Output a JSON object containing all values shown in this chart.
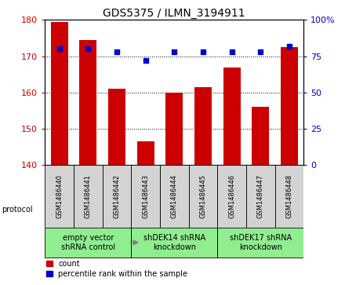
{
  "title": "GDS5375 / ILMN_3194911",
  "samples": [
    "GSM1486440",
    "GSM1486441",
    "GSM1486442",
    "GSM1486443",
    "GSM1486444",
    "GSM1486445",
    "GSM1486446",
    "GSM1486447",
    "GSM1486448"
  ],
  "counts": [
    179.5,
    174.5,
    161.0,
    146.5,
    160.0,
    161.5,
    167.0,
    156.0,
    172.5
  ],
  "percentiles": [
    80,
    80,
    78,
    72,
    78,
    78,
    78,
    78,
    82
  ],
  "ylim_left": [
    140,
    180
  ],
  "ylim_right": [
    0,
    100
  ],
  "yticks_left": [
    140,
    150,
    160,
    170,
    180
  ],
  "yticks_right": [
    0,
    25,
    50,
    75,
    100
  ],
  "ytick_labels_right": [
    "0",
    "25",
    "50",
    "75",
    "100%"
  ],
  "bar_color": "#cc0000",
  "dot_color": "#0000cc",
  "groups": [
    {
      "label": "empty vector\nshRNA control",
      "start": 0,
      "end": 3,
      "color": "#90ee90"
    },
    {
      "label": "shDEK14 shRNA\nknockdown",
      "start": 3,
      "end": 6,
      "color": "#90ee90"
    },
    {
      "label": "shDEK17 shRNA\nknockdown",
      "start": 6,
      "end": 9,
      "color": "#90ee90"
    }
  ],
  "legend_count_label": "count",
  "legend_pct_label": "percentile rank within the sample",
  "protocol_label": "protocol",
  "background_color": "#ffffff",
  "tick_label_area_color": "#d3d3d3",
  "bar_width": 0.6,
  "title_fontsize": 10,
  "axis_fontsize": 8,
  "label_fontsize": 7,
  "group_label_fontsize": 7,
  "sample_fontsize": 6
}
